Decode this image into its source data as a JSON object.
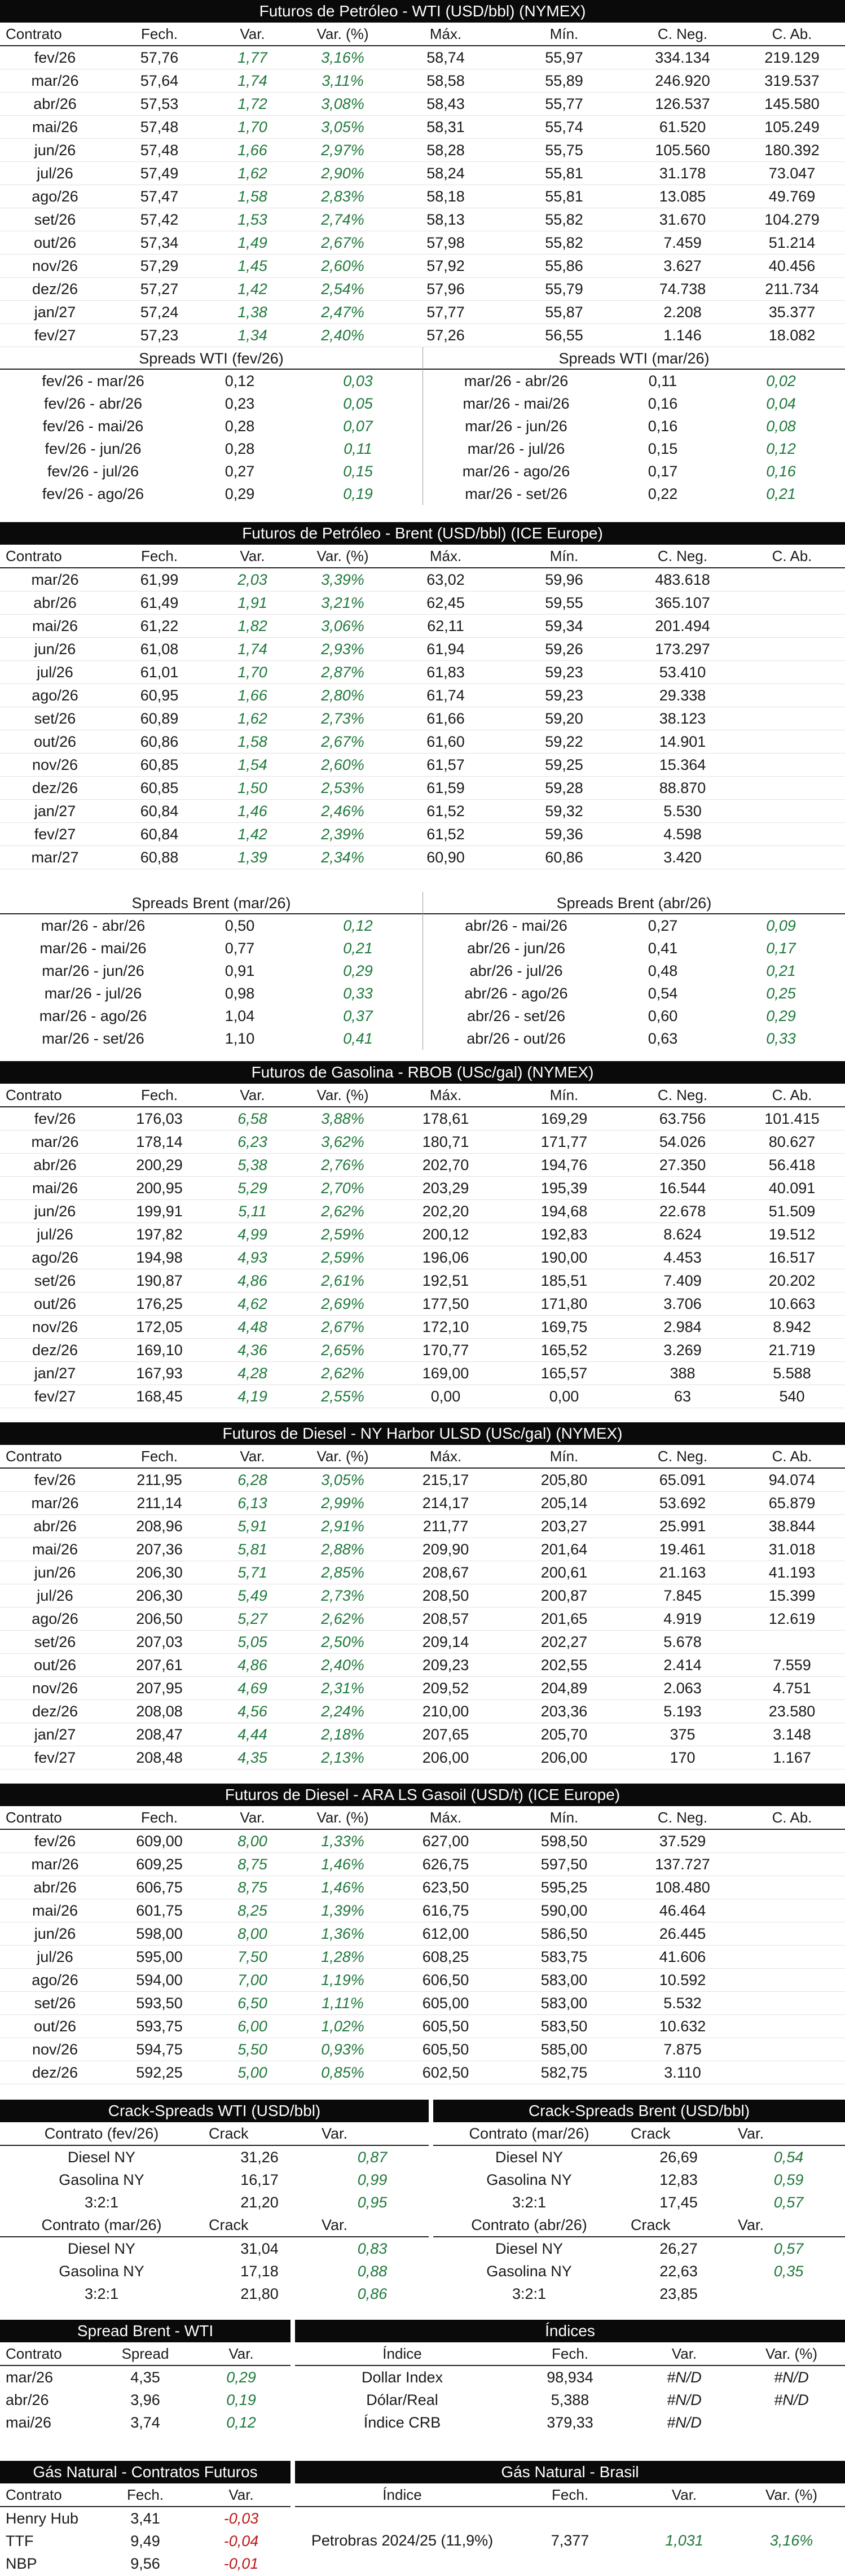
{
  "wti": {
    "title": "Futuros de Petróleo - WTI (USD/bbl) (NYMEX)",
    "columns": [
      "Contrato",
      "Fech.",
      "Var.",
      "Var. (%)",
      "Máx.",
      "Mín.",
      "C. Neg.",
      "C. Ab."
    ],
    "rows": [
      [
        "fev/26",
        "57,76",
        "1,77",
        "3,16%",
        "58,74",
        "55,97",
        "334.134",
        "219.129"
      ],
      [
        "mar/26",
        "57,64",
        "1,74",
        "3,11%",
        "58,58",
        "55,89",
        "246.920",
        "319.537"
      ],
      [
        "abr/26",
        "57,53",
        "1,72",
        "3,08%",
        "58,43",
        "55,77",
        "126.537",
        "145.580"
      ],
      [
        "mai/26",
        "57,48",
        "1,70",
        "3,05%",
        "58,31",
        "55,74",
        "61.520",
        "105.249"
      ],
      [
        "jun/26",
        "57,48",
        "1,66",
        "2,97%",
        "58,28",
        "55,75",
        "105.560",
        "180.392"
      ],
      [
        "jul/26",
        "57,49",
        "1,62",
        "2,90%",
        "58,24",
        "55,81",
        "31.178",
        "73.047"
      ],
      [
        "ago/26",
        "57,47",
        "1,58",
        "2,83%",
        "58,18",
        "55,81",
        "13.085",
        "49.769"
      ],
      [
        "set/26",
        "57,42",
        "1,53",
        "2,74%",
        "58,13",
        "55,82",
        "31.670",
        "104.279"
      ],
      [
        "out/26",
        "57,34",
        "1,49",
        "2,67%",
        "57,98",
        "55,82",
        "7.459",
        "51.214"
      ],
      [
        "nov/26",
        "57,29",
        "1,45",
        "2,60%",
        "57,92",
        "55,86",
        "3.627",
        "40.456"
      ],
      [
        "dez/26",
        "57,27",
        "1,42",
        "2,54%",
        "57,96",
        "55,79",
        "74.738",
        "211.734"
      ],
      [
        "jan/27",
        "57,24",
        "1,38",
        "2,47%",
        "57,77",
        "55,87",
        "2.208",
        "35.377"
      ],
      [
        "fev/27",
        "57,23",
        "1,34",
        "2,40%",
        "57,26",
        "56,55",
        "1.146",
        "18.082"
      ]
    ],
    "spreads_left": {
      "title": "Spreads WTI (fev/26)",
      "rows": [
        [
          "fev/26 - mar/26",
          "0,12",
          "0,03"
        ],
        [
          "fev/26 - abr/26",
          "0,23",
          "0,05"
        ],
        [
          "fev/26 - mai/26",
          "0,28",
          "0,07"
        ],
        [
          "fev/26 - jun/26",
          "0,28",
          "0,11"
        ],
        [
          "fev/26 - jul/26",
          "0,27",
          "0,15"
        ],
        [
          "fev/26 - ago/26",
          "0,29",
          "0,19"
        ]
      ]
    },
    "spreads_right": {
      "title": "Spreads WTI (mar/26)",
      "rows": [
        [
          "mar/26 - abr/26",
          "0,11",
          "0,02"
        ],
        [
          "mar/26 - mai/26",
          "0,16",
          "0,04"
        ],
        [
          "mar/26 - jun/26",
          "0,16",
          "0,08"
        ],
        [
          "mar/26 - jul/26",
          "0,15",
          "0,12"
        ],
        [
          "mar/26 - ago/26",
          "0,17",
          "0,16"
        ],
        [
          "mar/26 - set/26",
          "0,22",
          "0,21"
        ]
      ]
    }
  },
  "brent": {
    "title": "Futuros de Petróleo - Brent (USD/bbl) (ICE Europe)",
    "columns": [
      "Contrato",
      "Fech.",
      "Var.",
      "Var. (%)",
      "Máx.",
      "Mín.",
      "C. Neg.",
      "C. Ab."
    ],
    "rows": [
      [
        "mar/26",
        "61,99",
        "2,03",
        "3,39%",
        "63,02",
        "59,96",
        "483.618",
        ""
      ],
      [
        "abr/26",
        "61,49",
        "1,91",
        "3,21%",
        "62,45",
        "59,55",
        "365.107",
        ""
      ],
      [
        "mai/26",
        "61,22",
        "1,82",
        "3,06%",
        "62,11",
        "59,34",
        "201.494",
        ""
      ],
      [
        "jun/26",
        "61,08",
        "1,74",
        "2,93%",
        "61,94",
        "59,26",
        "173.297",
        ""
      ],
      [
        "jul/26",
        "61,01",
        "1,70",
        "2,87%",
        "61,83",
        "59,23",
        "53.410",
        ""
      ],
      [
        "ago/26",
        "60,95",
        "1,66",
        "2,80%",
        "61,74",
        "59,23",
        "29.338",
        ""
      ],
      [
        "set/26",
        "60,89",
        "1,62",
        "2,73%",
        "61,66",
        "59,20",
        "38.123",
        ""
      ],
      [
        "out/26",
        "60,86",
        "1,58",
        "2,67%",
        "61,60",
        "59,22",
        "14.901",
        ""
      ],
      [
        "nov/26",
        "60,85",
        "1,54",
        "2,60%",
        "61,57",
        "59,25",
        "15.364",
        ""
      ],
      [
        "dez/26",
        "60,85",
        "1,50",
        "2,53%",
        "61,59",
        "59,28",
        "88.870",
        ""
      ],
      [
        "jan/27",
        "60,84",
        "1,46",
        "2,46%",
        "61,52",
        "59,32",
        "5.530",
        ""
      ],
      [
        "fev/27",
        "60,84",
        "1,42",
        "2,39%",
        "61,52",
        "59,36",
        "4.598",
        ""
      ],
      [
        "mar/27",
        "60,88",
        "1,39",
        "2,34%",
        "60,90",
        "60,86",
        "3.420",
        ""
      ]
    ],
    "spreads_left": {
      "title": "Spreads Brent (mar/26)",
      "rows": [
        [
          "mar/26 - abr/26",
          "0,50",
          "0,12"
        ],
        [
          "mar/26 - mai/26",
          "0,77",
          "0,21"
        ],
        [
          "mar/26 - jun/26",
          "0,91",
          "0,29"
        ],
        [
          "mar/26 - jul/26",
          "0,98",
          "0,33"
        ],
        [
          "mar/26 - ago/26",
          "1,04",
          "0,37"
        ],
        [
          "mar/26 - set/26",
          "1,10",
          "0,41"
        ]
      ]
    },
    "spreads_right": {
      "title": "Spreads Brent (abr/26)",
      "rows": [
        [
          "abr/26 - mai/26",
          "0,27",
          "0,09"
        ],
        [
          "abr/26 - jun/26",
          "0,41",
          "0,17"
        ],
        [
          "abr/26 - jul/26",
          "0,48",
          "0,21"
        ],
        [
          "abr/26 - ago/26",
          "0,54",
          "0,25"
        ],
        [
          "abr/26 - set/26",
          "0,60",
          "0,29"
        ],
        [
          "abr/26 - out/26",
          "0,63",
          "0,33"
        ]
      ]
    }
  },
  "rbob": {
    "title": "Futuros de Gasolina - RBOB (USc/gal) (NYMEX)",
    "columns": [
      "Contrato",
      "Fech.",
      "Var.",
      "Var. (%)",
      "Máx.",
      "Mín.",
      "C. Neg.",
      "C. Ab."
    ],
    "rows": [
      [
        "fev/26",
        "176,03",
        "6,58",
        "3,88%",
        "178,61",
        "169,29",
        "63.756",
        "101.415"
      ],
      [
        "mar/26",
        "178,14",
        "6,23",
        "3,62%",
        "180,71",
        "171,77",
        "54.026",
        "80.627"
      ],
      [
        "abr/26",
        "200,29",
        "5,38",
        "2,76%",
        "202,70",
        "194,76",
        "27.350",
        "56.418"
      ],
      [
        "mai/26",
        "200,95",
        "5,29",
        "2,70%",
        "203,29",
        "195,39",
        "16.544",
        "40.091"
      ],
      [
        "jun/26",
        "199,91",
        "5,11",
        "2,62%",
        "202,20",
        "194,68",
        "22.678",
        "51.509"
      ],
      [
        "jul/26",
        "197,82",
        "4,99",
        "2,59%",
        "200,12",
        "192,83",
        "8.624",
        "19.512"
      ],
      [
        "ago/26",
        "194,98",
        "4,93",
        "2,59%",
        "196,06",
        "190,00",
        "4.453",
        "16.517"
      ],
      [
        "set/26",
        "190,87",
        "4,86",
        "2,61%",
        "192,51",
        "185,51",
        "7.409",
        "20.202"
      ],
      [
        "out/26",
        "176,25",
        "4,62",
        "2,69%",
        "177,50",
        "171,80",
        "3.706",
        "10.663"
      ],
      [
        "nov/26",
        "172,05",
        "4,48",
        "2,67%",
        "172,10",
        "169,75",
        "2.984",
        "8.942"
      ],
      [
        "dez/26",
        "169,10",
        "4,36",
        "2,65%",
        "170,77",
        "165,52",
        "3.269",
        "21.719"
      ],
      [
        "jan/27",
        "167,93",
        "4,28",
        "2,62%",
        "169,00",
        "165,57",
        "388",
        "5.588"
      ],
      [
        "fev/27",
        "168,45",
        "4,19",
        "2,55%",
        "0,00",
        "0,00",
        "63",
        "540"
      ]
    ]
  },
  "ulsd": {
    "title": "Futuros de Diesel - NY Harbor ULSD (USc/gal) (NYMEX)",
    "columns": [
      "Contrato",
      "Fech.",
      "Var.",
      "Var. (%)",
      "Máx.",
      "Mín.",
      "C. Neg.",
      "C. Ab."
    ],
    "rows": [
      [
        "fev/26",
        "211,95",
        "6,28",
        "3,05%",
        "215,17",
        "205,80",
        "65.091",
        "94.074"
      ],
      [
        "mar/26",
        "211,14",
        "6,13",
        "2,99%",
        "214,17",
        "205,14",
        "53.692",
        "65.879"
      ],
      [
        "abr/26",
        "208,96",
        "5,91",
        "2,91%",
        "211,77",
        "203,27",
        "25.991",
        "38.844"
      ],
      [
        "mai/26",
        "207,36",
        "5,81",
        "2,88%",
        "209,90",
        "201,64",
        "19.461",
        "31.018"
      ],
      [
        "jun/26",
        "206,30",
        "5,71",
        "2,85%",
        "208,67",
        "200,61",
        "21.163",
        "41.193"
      ],
      [
        "jul/26",
        "206,30",
        "5,49",
        "2,73%",
        "208,50",
        "200,87",
        "7.845",
        "15.399"
      ],
      [
        "ago/26",
        "206,50",
        "5,27",
        "2,62%",
        "208,57",
        "201,65",
        "4.919",
        "12.619"
      ],
      [
        "set/26",
        "207,03",
        "5,05",
        "2,50%",
        "209,14",
        "202,27",
        "5.678",
        ""
      ],
      [
        "out/26",
        "207,61",
        "4,86",
        "2,40%",
        "209,23",
        "202,55",
        "2.414",
        "7.559"
      ],
      [
        "nov/26",
        "207,95",
        "4,69",
        "2,31%",
        "209,52",
        "204,89",
        "2.063",
        "4.751"
      ],
      [
        "dez/26",
        "208,08",
        "4,56",
        "2,24%",
        "210,00",
        "203,36",
        "5.193",
        "23.580"
      ],
      [
        "jan/27",
        "208,47",
        "4,44",
        "2,18%",
        "207,65",
        "205,70",
        "375",
        "3.148"
      ],
      [
        "fev/27",
        "208,48",
        "4,35",
        "2,13%",
        "206,00",
        "206,00",
        "170",
        "1.167"
      ]
    ]
  },
  "gasoil": {
    "title": "Futuros de Diesel - ARA LS Gasoil (USD/t) (ICE Europe)",
    "columns": [
      "Contrato",
      "Fech.",
      "Var.",
      "Var. (%)",
      "Máx.",
      "Mín.",
      "C. Neg.",
      "C. Ab."
    ],
    "rows": [
      [
        "fev/26",
        "609,00",
        "8,00",
        "1,33%",
        "627,00",
        "598,50",
        "37.529",
        ""
      ],
      [
        "mar/26",
        "609,25",
        "8,75",
        "1,46%",
        "626,75",
        "597,50",
        "137.727",
        ""
      ],
      [
        "abr/26",
        "606,75",
        "8,75",
        "1,46%",
        "623,50",
        "595,25",
        "108.480",
        ""
      ],
      [
        "mai/26",
        "601,75",
        "8,25",
        "1,39%",
        "616,75",
        "590,00",
        "46.464",
        ""
      ],
      [
        "jun/26",
        "598,00",
        "8,00",
        "1,36%",
        "612,00",
        "586,50",
        "26.445",
        ""
      ],
      [
        "jul/26",
        "595,00",
        "7,50",
        "1,28%",
        "608,25",
        "583,75",
        "41.606",
        ""
      ],
      [
        "ago/26",
        "594,00",
        "7,00",
        "1,19%",
        "606,50",
        "583,00",
        "10.592",
        ""
      ],
      [
        "set/26",
        "593,50",
        "6,50",
        "1,11%",
        "605,00",
        "583,00",
        "5.532",
        ""
      ],
      [
        "out/26",
        "593,75",
        "6,00",
        "1,02%",
        "605,50",
        "583,50",
        "10.632",
        ""
      ],
      [
        "nov/26",
        "594,75",
        "5,50",
        "0,93%",
        "605,50",
        "585,00",
        "7.875",
        ""
      ],
      [
        "dez/26",
        "592,25",
        "5,00",
        "0,85%",
        "602,50",
        "582,75",
        "3.110",
        ""
      ]
    ]
  },
  "crack_wti": {
    "title": "Crack-Spreads WTI (USD/bbl)",
    "groups": [
      {
        "header": [
          "Contrato (fev/26)",
          "Crack",
          "Var."
        ],
        "rows": [
          [
            "Diesel NY",
            "31,26",
            "0,87"
          ],
          [
            "Gasolina NY",
            "16,17",
            "0,99"
          ],
          [
            "3:2:1",
            "21,20",
            "0,95"
          ]
        ]
      },
      {
        "header": [
          "Contrato (mar/26)",
          "Crack",
          "Var."
        ],
        "rows": [
          [
            "Diesel NY",
            "31,04",
            "0,83"
          ],
          [
            "Gasolina NY",
            "17,18",
            "0,88"
          ],
          [
            "3:2:1",
            "21,80",
            "0,86"
          ]
        ]
      }
    ]
  },
  "crack_brent": {
    "title": "Crack-Spreads Brent (USD/bbl)",
    "groups": [
      {
        "header": [
          "Contrato (mar/26)",
          "Crack",
          "Var."
        ],
        "rows": [
          [
            "Diesel NY",
            "26,69",
            "0,54"
          ],
          [
            "Gasolina NY",
            "12,83",
            "0,59"
          ],
          [
            "3:2:1",
            "17,45",
            "0,57"
          ]
        ]
      },
      {
        "header": [
          "Contrato (abr/26)",
          "Crack",
          "Var."
        ],
        "rows": [
          [
            "Diesel NY",
            "26,27",
            "0,57"
          ],
          [
            "Gasolina NY",
            "22,63",
            "0,35"
          ],
          [
            "3:2:1",
            "23,85",
            ""
          ]
        ]
      }
    ]
  },
  "spread_bw": {
    "title": "Spread Brent - WTI",
    "columns": [
      "Contrato",
      "Spread",
      "Var."
    ],
    "rows": [
      [
        "mar/26",
        "4,35",
        "0,29"
      ],
      [
        "abr/26",
        "3,96",
        "0,19"
      ],
      [
        "mai/26",
        "3,74",
        "0,12"
      ]
    ]
  },
  "indices": {
    "title": "Índices",
    "columns": [
      "Índice",
      "Fech.",
      "Var.",
      "Var. (%)"
    ],
    "rows": [
      [
        "Dollar Index",
        "98,934",
        "#N/D",
        "#N/D"
      ],
      [
        "Dólar/Real",
        "5,388",
        "#N/D",
        "#N/D"
      ],
      [
        "Índice CRB",
        "379,33",
        "#N/D",
        ""
      ]
    ]
  },
  "gas_futures": {
    "title": "Gás Natural - Contratos Futuros",
    "columns": [
      "Contrato",
      "Fech.",
      "Var."
    ],
    "rows": [
      [
        "Henry Hub",
        "3,41",
        "-0,03"
      ],
      [
        "TTF",
        "9,49",
        "-0,04"
      ],
      [
        "NBP",
        "9,56",
        "-0,01"
      ]
    ]
  },
  "gas_brasil": {
    "title": "Gás Natural - Brasil",
    "columns": [
      "Índice",
      "Fech.",
      "Var.",
      "Var. (%)"
    ],
    "row": [
      "Petrobras 2024/25 (11,9%)",
      "7,377",
      "1,031",
      "3,16%"
    ]
  }
}
